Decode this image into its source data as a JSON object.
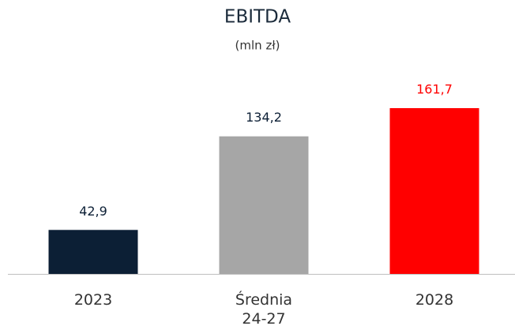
{
  "chart_data": {
    "type": "bar",
    "title": "EBITDA",
    "subtitle": "(mln zł)",
    "categories": [
      "2023",
      "Średnia 24-27",
      "2028"
    ],
    "values": [
      42.9,
      134.2,
      161.7
    ],
    "value_labels": [
      "42,9",
      "134,2",
      "161,7"
    ],
    "colors": [
      "#0c1f35",
      "#a6a6a6",
      "#ff0000"
    ],
    "value_label_colors": [
      "#0c1f35",
      "#0c1f35",
      "#ff0000"
    ]
  }
}
